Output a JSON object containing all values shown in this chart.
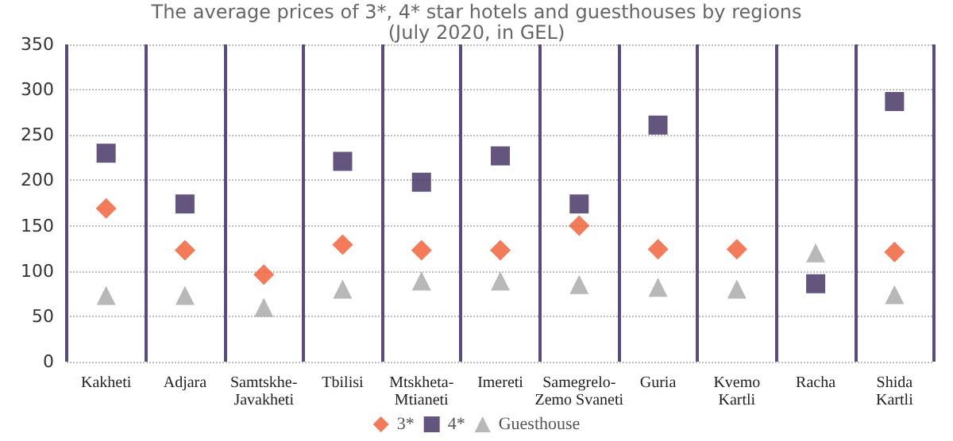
{
  "chart_data": {
    "type": "scatter",
    "title": "The average prices of 3*, 4* star hotels and guesthouses by regions\n(July 2020, in GEL)",
    "categories": [
      "Kakheti",
      "Adjara",
      "Samtskhe-\nJavakheti",
      "Tbilisi",
      "Mtskheta-\nMtianeti",
      "Imereti",
      "Samegrelo-\nZemo Svaneti",
      "Guria",
      "Kvemo\nKartli",
      "Racha",
      "Shida\nKartli"
    ],
    "series": [
      {
        "name": "3*",
        "color": "#f05a30",
        "marker": "diamond",
        "values": [
          169,
          123,
          96,
          129,
          123,
          123,
          150,
          124,
          124,
          null,
          121
        ]
      },
      {
        "name": "4*",
        "color": "#3c2a5e",
        "marker": "square",
        "values": [
          230,
          174,
          null,
          221,
          198,
          227,
          174,
          261,
          null,
          86,
          287
        ]
      },
      {
        "name": "Guesthouse",
        "color": "#a6a6a6",
        "marker": "triangle",
        "values": [
          73,
          73,
          60,
          80,
          89,
          89,
          85,
          82,
          80,
          120,
          74
        ]
      }
    ],
    "ylim": [
      0,
      350
    ],
    "yticks": [
      0,
      50,
      100,
      150,
      200,
      250,
      300,
      350
    ],
    "grid": true,
    "legend": "bottom"
  }
}
